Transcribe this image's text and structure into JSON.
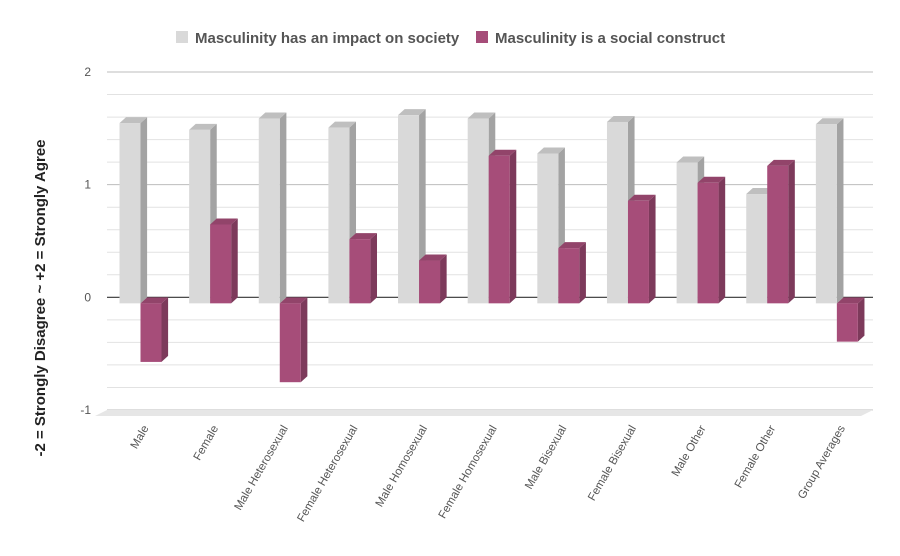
{
  "chart_data": {
    "type": "bar",
    "ylabel": "-2 = Strongly Disagree ~ +2 = Strongly Agree",
    "ylim": [
      -1,
      2
    ],
    "yticks": [
      "2",
      "1",
      "0",
      "-1"
    ],
    "grid": true,
    "legend_position": "top",
    "categories": [
      "Male",
      "Female",
      "Male Heterosexual",
      "Female Heterosexual",
      "Male Homosexual",
      "Female Homosexual",
      "Male Bisexual",
      "Female Bisexual",
      "Male Other",
      "Female Other",
      "Group Averages"
    ],
    "series": [
      {
        "name": "Masculinity has an impact on society",
        "color": "#d9d9d9",
        "values": [
          1.6,
          1.54,
          1.64,
          1.56,
          1.67,
          1.64,
          1.33,
          1.61,
          1.25,
          0.97,
          1.59
        ]
      },
      {
        "name": "Masculinity is a social construct",
        "color": "#a64d79",
        "values": [
          -0.52,
          0.7,
          -0.7,
          0.57,
          0.38,
          1.31,
          0.49,
          0.91,
          1.07,
          1.22,
          -0.34
        ]
      }
    ]
  }
}
